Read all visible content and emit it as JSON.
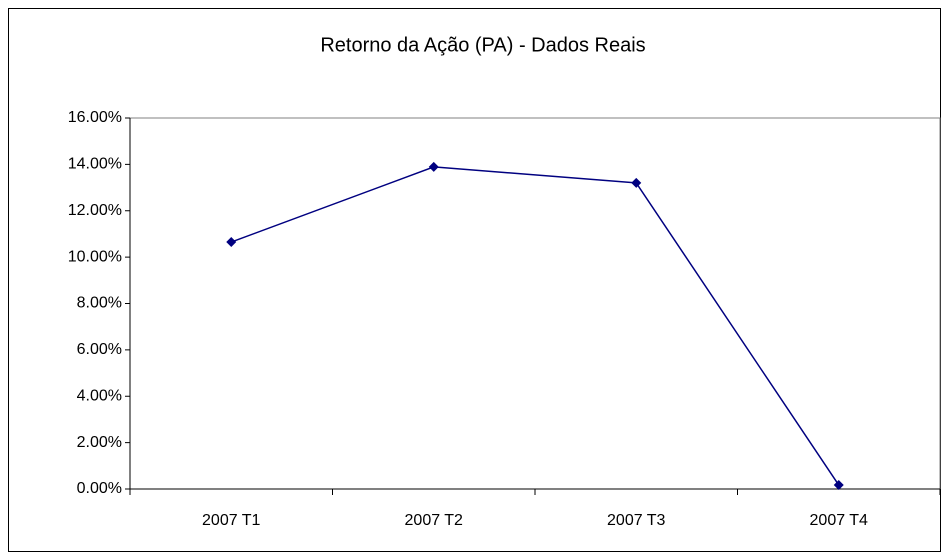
{
  "chart_data": {
    "type": "line",
    "title": "Retorno da Ação (PA) - Dados Reais",
    "categories": [
      "2007 T1",
      "2007 T2",
      "2007 T3",
      "2007 T4"
    ],
    "values": [
      10.65,
      13.89,
      13.2,
      0.17
    ],
    "color": "#000080",
    "ylim": [
      0,
      16
    ],
    "yticks": [
      {
        "value": 0,
        "label": "0.00%"
      },
      {
        "value": 2,
        "label": "2.00%"
      },
      {
        "value": 4,
        "label": "4.00%"
      },
      {
        "value": 6,
        "label": "6.00%"
      },
      {
        "value": 8,
        "label": "8.00%"
      },
      {
        "value": 10,
        "label": "10.00%"
      },
      {
        "value": 12,
        "label": "12.00%"
      },
      {
        "value": 14,
        "label": "14.00%"
      },
      {
        "value": 16,
        "label": "16.00%"
      }
    ],
    "grid": false
  }
}
